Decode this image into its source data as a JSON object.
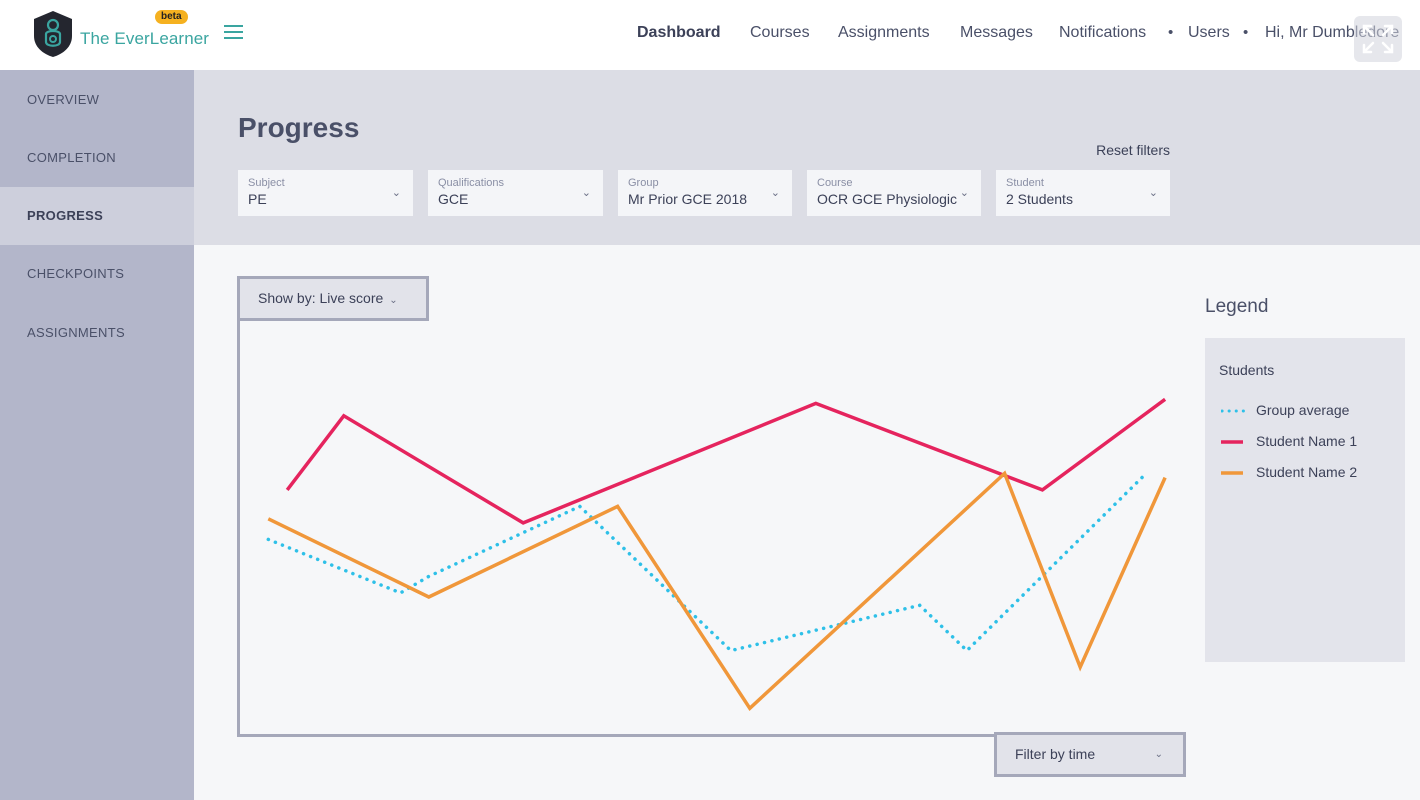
{
  "header": {
    "brand": "The EverLearner",
    "beta": "beta",
    "nav": [
      "Dashboard",
      "Courses",
      "Assignments",
      "Messages",
      "Notifications",
      "Users",
      "Hi, Mr Dumbledore"
    ],
    "active_nav": "Dashboard"
  },
  "sidebar": {
    "items": [
      {
        "label": "OVERVIEW"
      },
      {
        "label": "COMPLETION"
      },
      {
        "label": "PROGRESS"
      },
      {
        "label": "CHECKPOINTS"
      },
      {
        "label": "ASSIGNMENTS"
      }
    ],
    "active": "PROGRESS"
  },
  "main": {
    "title": "Progress",
    "reset_filters": "Reset filters",
    "filters": [
      {
        "label": "Subject",
        "value": "PE"
      },
      {
        "label": "Qualifications",
        "value": "GCE"
      },
      {
        "label": "Group",
        "value": "Mr Prior GCE 2018"
      },
      {
        "label": "Course",
        "value": "OCR GCE Physiologic"
      },
      {
        "label": "Student",
        "value": "2 Students"
      }
    ],
    "show_by": "Show by: Live score",
    "filter_by_time": "Filter by time"
  },
  "legend": {
    "title": "Legend",
    "subtitle": "Students",
    "items": [
      {
        "name": "Group average",
        "color": "#2ec0e8",
        "style": "dotted"
      },
      {
        "name": "Student Name 1",
        "color": "#e5245e",
        "style": "solid"
      },
      {
        "name": "Student Name 2",
        "color": "#f0973a",
        "style": "solid"
      }
    ]
  },
  "chart_data": {
    "type": "line",
    "title": "",
    "xlabel": "",
    "ylabel": "",
    "xlim": [
      0,
      100
    ],
    "ylim": [
      0,
      100
    ],
    "grid": false,
    "legend_position": "right",
    "series": [
      {
        "name": "Group average",
        "color": "#2ec0e8",
        "style": "dotted",
        "x": [
          3,
          17,
          20,
          36,
          52,
          72,
          77,
          96
        ],
        "y": [
          47,
          34,
          38,
          55,
          20,
          31,
          20,
          63
        ]
      },
      {
        "name": "Student Name 1",
        "color": "#e5245e",
        "style": "solid",
        "x": [
          5,
          11,
          30,
          61,
          85,
          98
        ],
        "y": [
          59,
          77,
          51,
          80,
          59,
          81
        ]
      },
      {
        "name": "Student Name 2",
        "color": "#f0973a",
        "style": "solid",
        "x": [
          3,
          20,
          40,
          54,
          81,
          89,
          98
        ],
        "y": [
          52,
          33,
          55,
          6,
          63,
          16,
          62
        ]
      }
    ]
  }
}
